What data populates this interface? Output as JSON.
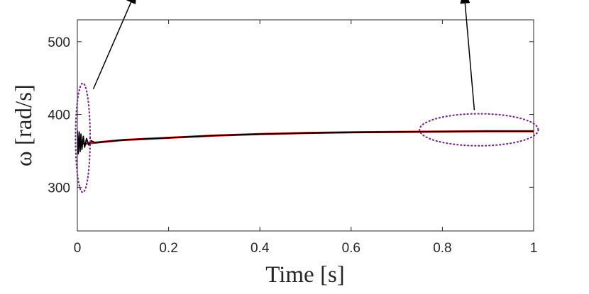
{
  "chart_data": {
    "type": "line",
    "xlabel": "Time [s]",
    "ylabel": "ω [rad/s]",
    "xlim": [
      0,
      1
    ],
    "ylim": [
      240,
      530
    ],
    "x_ticks": [
      "0",
      "0.2",
      "0.4",
      "0.6",
      "0.8",
      "1"
    ],
    "x_tick_values": [
      0,
      0.2,
      0.4,
      0.6,
      0.8,
      1
    ],
    "y_ticks": [
      "300",
      "400",
      "500"
    ],
    "y_tick_values": [
      300,
      400,
      500
    ],
    "grid": false,
    "series": [
      {
        "color": "#e00000",
        "x": [
          0,
          0.02,
          0.05,
          0.1,
          0.2,
          0.3,
          0.4,
          0.5,
          0.6,
          0.7,
          0.8,
          0.9,
          1.0
        ],
        "values": [
          360,
          360,
          362,
          365,
          368,
          371,
          373,
          374.5,
          375.5,
          376,
          376.5,
          377,
          377
        ]
      },
      {
        "color": "#000000",
        "x": [
          0,
          0.002,
          0.004,
          0.006,
          0.008,
          0.01,
          0.013,
          0.016,
          0.02,
          0.025,
          0.03,
          0.04,
          0.05,
          0.1,
          0.2,
          0.3,
          0.4,
          0.5,
          0.6,
          0.7,
          0.8,
          0.9,
          1.0
        ],
        "values": [
          378,
          346,
          376,
          349,
          373,
          352,
          370,
          355,
          367,
          358,
          364,
          361,
          362,
          365,
          368,
          371,
          373,
          374.5,
          375.5,
          376,
          376.5,
          377,
          377
        ]
      }
    ],
    "annotation_ellipses": [
      {
        "cx": 0.012,
        "cy": 368,
        "rx": 0.016,
        "ry": 75,
        "color": "#7a2a8a"
      },
      {
        "cx": 0.88,
        "cy": 379,
        "rx": 0.13,
        "ry": 22,
        "color": "#7a2a8a"
      }
    ],
    "arrows": [
      {
        "from": [
          0.035,
          435
        ],
        "to": [
          0.13,
          572
        ],
        "color": "#000000"
      },
      {
        "from": [
          0.87,
          406
        ],
        "to": [
          0.847,
          572
        ],
        "color": "#000000"
      }
    ]
  }
}
